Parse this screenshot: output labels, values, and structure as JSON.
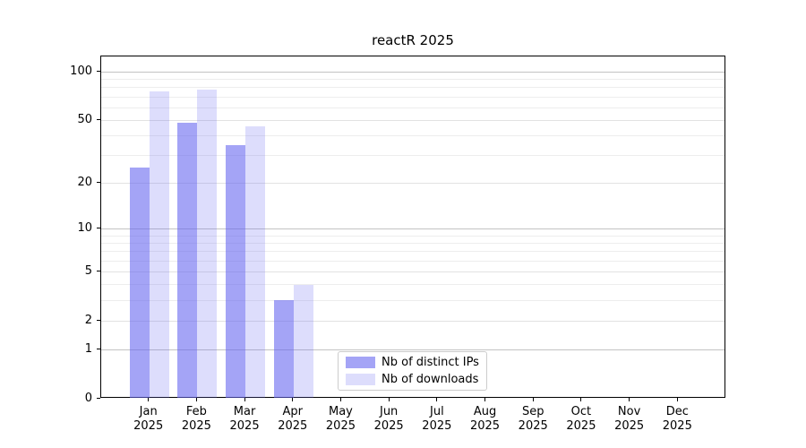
{
  "figure": {
    "background": "#ffffff"
  },
  "title": "reactR 2025",
  "legend": {
    "items": [
      {
        "label": "Nb of distinct IPs",
        "color": "rgba(98,98,240,0.58)"
      },
      {
        "label": "Nb of downloads",
        "color": "rgba(98,98,240,0.22)"
      }
    ]
  },
  "colors": {
    "distinct_ips_bar": "rgba(98,98,240,0.58)",
    "downloads_bar": "rgba(98,98,240,0.22)",
    "major_gridline": "#c3c3c3",
    "labeled_gridline": "#e2e2e2",
    "minor_gridline": "#ededed",
    "axis": "#000000"
  },
  "chart_data": {
    "type": "bar",
    "title": "reactR 2025",
    "categories": [
      "Jan 2025",
      "Feb 2025",
      "Mar 2025",
      "Apr 2025",
      "May 2025",
      "Jun 2025",
      "Jul 2025",
      "Aug 2025",
      "Sep 2025",
      "Oct 2025",
      "Nov 2025",
      "Dec 2025"
    ],
    "x_tick_months": [
      "Jan",
      "Feb",
      "Mar",
      "Apr",
      "May",
      "Jun",
      "Jul",
      "Aug",
      "Sep",
      "Oct",
      "Nov",
      "Dec"
    ],
    "x_tick_year": "2025",
    "series": [
      {
        "name": "Nb of distinct IPs",
        "color": "rgba(98,98,240,0.58)",
        "values": [
          25,
          48,
          35,
          3,
          null,
          null,
          null,
          null,
          null,
          null,
          null,
          null
        ]
      },
      {
        "name": "Nb of downloads",
        "color": "rgba(98,98,240,0.22)",
        "values": [
          76,
          78,
          46,
          4,
          null,
          null,
          null,
          null,
          null,
          null,
          null,
          null
        ]
      }
    ],
    "y_scale": "log10(1+v)",
    "y_ticks": [
      0,
      1,
      2,
      5,
      10,
      20,
      50,
      100
    ],
    "y_major_gridlines": [
      1,
      10,
      100
    ],
    "y_labeled_gridlines": [
      2,
      5,
      20,
      50
    ],
    "y_minor_gridlines": [
      3,
      4,
      6,
      7,
      8,
      9,
      30,
      40,
      60,
      70,
      80,
      90
    ],
    "ylim": [
      0,
      120
    ],
    "xlabel": "",
    "ylabel": "",
    "grid": true,
    "legend_position": "inside-bottom-center"
  }
}
